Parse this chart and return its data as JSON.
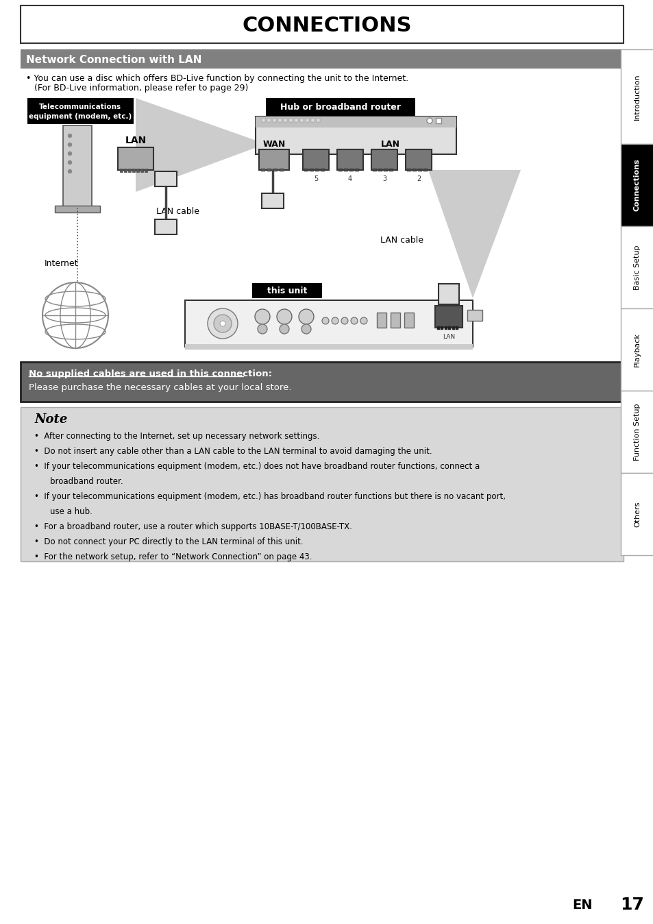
{
  "title": "CONNECTIONS",
  "section_header": "Network Connection with LAN",
  "intro_line1": "• You can use a disc which offers BD-Live function by connecting the unit to the Internet.",
  "intro_line2": "   (For BD-Live information, please refer to page 29)",
  "cable_warning_bold": "No supplied cables are used in this connection:",
  "cable_warning_normal": "Please purchase the necessary cables at your local store.",
  "note_title": "Note",
  "note_bullets": [
    "After connecting to the Internet, set up necessary network settings.",
    "Do not insert any cable other than a LAN cable to the LAN terminal to avoid damaging the unit.",
    "If your telecommunications equipment (modem, etc.) does not have broadband router functions, connect a",
    "    broadband router.",
    "If your telecommunications equipment (modem, etc.) has broadband router functions but there is no vacant port,",
    "    use a hub.",
    "For a broadband router, use a router which supports 10BASE-T/100BASE-TX.",
    "Do not connect your PC directly to the LAN terminal of this unit.",
    "For the network setup, refer to “Network Connection” on page 43."
  ],
  "note_bullets_is_continuation": [
    false,
    false,
    false,
    true,
    false,
    true,
    false,
    false,
    false
  ],
  "sidebar_labels": [
    "Introduction",
    "Connections",
    "Basic Setup",
    "Playback",
    "Function Setup",
    "Others"
  ],
  "page_number": "17",
  "en_label": "EN",
  "bg_white": "#ffffff",
  "bg_gray_section": "#808080",
  "bg_black": "#000000",
  "bg_note": "#d8d8d8",
  "color_white": "#ffffff",
  "color_black": "#000000",
  "sidebar_active_bg": "#000000",
  "sidebar_border": "#999999"
}
